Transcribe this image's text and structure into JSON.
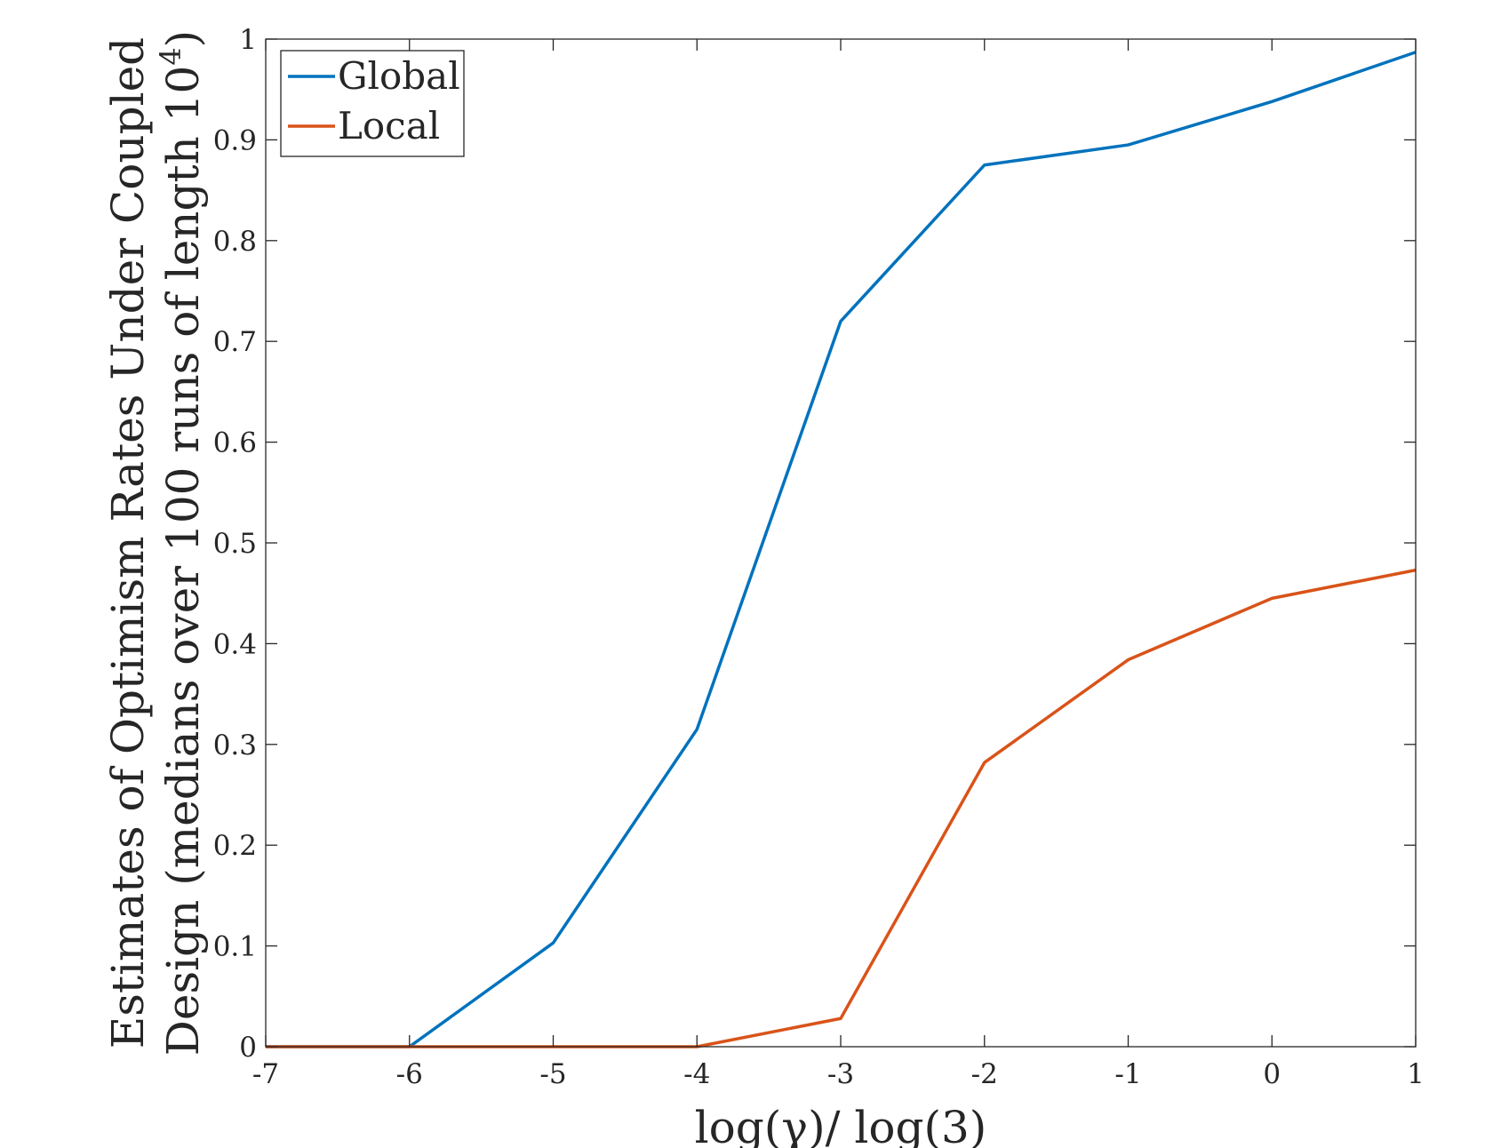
{
  "chart_data": {
    "type": "line",
    "title": "",
    "xlabel": "log(γ)/ log(3)",
    "ylabel": {
      "line1": "Estimates of Optimism Rates Under Coupled",
      "line2_prefix": "Design (medians over 100 runs of length 10",
      "line2_exponent": "4",
      "line2_suffix": ")"
    },
    "xlim": [
      -7,
      1
    ],
    "ylim": [
      0,
      1
    ],
    "xticks": [
      -7,
      -6,
      -5,
      -4,
      -3,
      -2,
      -1,
      0,
      1
    ],
    "xtick_labels": [
      "-7",
      "-6",
      "-5",
      "-4",
      "-3",
      "-2",
      "-1",
      "0",
      "1"
    ],
    "yticks": [
      0,
      0.1,
      0.2,
      0.3,
      0.4,
      0.5,
      0.6,
      0.7,
      0.8,
      0.9,
      1
    ],
    "ytick_labels": [
      "0",
      "0.1",
      "0.2",
      "0.3",
      "0.4",
      "0.5",
      "0.6",
      "0.7",
      "0.8",
      "0.9",
      "1"
    ],
    "grid": false,
    "legend_position": "top-left",
    "x": [
      -7,
      -6,
      -5,
      -4,
      -3,
      -2,
      -1,
      0,
      1
    ],
    "series": [
      {
        "name": "Global",
        "color": "#0072BD",
        "values": [
          0,
          0,
          0.103,
          0.315,
          0.72,
          0.875,
          0.895,
          0.938,
          0.987
        ]
      },
      {
        "name": "Local",
        "color": "#D95319",
        "values": [
          0,
          0,
          0,
          0,
          0.028,
          0.282,
          0.384,
          0.445,
          0.473
        ]
      }
    ]
  }
}
